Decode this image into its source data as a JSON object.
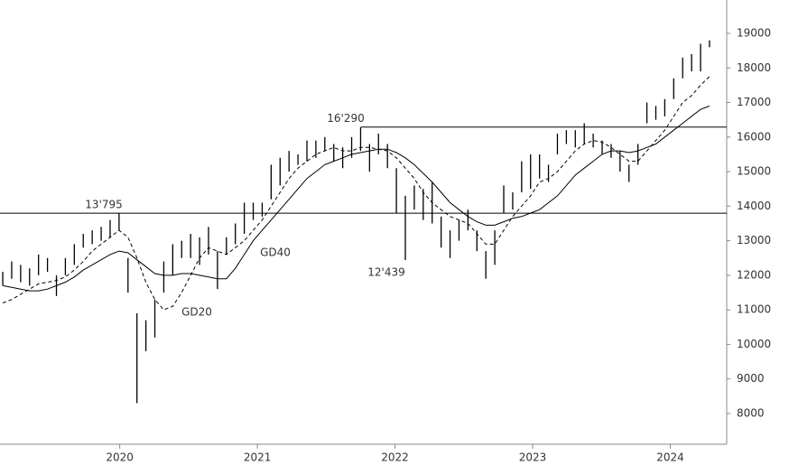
{
  "chart_data": {
    "type": "ohlc",
    "x": [
      2019.15,
      2019.215,
      2019.28,
      2019.345,
      2019.41,
      2019.475,
      2019.54,
      2019.605,
      2019.67,
      2019.735,
      2019.8,
      2019.865,
      2019.93,
      2019.995,
      2020.06,
      2020.125,
      2020.19,
      2020.255,
      2020.32,
      2020.385,
      2020.45,
      2020.515,
      2020.58,
      2020.645,
      2020.71,
      2020.775,
      2020.84,
      2020.905,
      2020.97,
      2021.035,
      2021.1,
      2021.165,
      2021.23,
      2021.295,
      2021.36,
      2021.425,
      2021.49,
      2021.555,
      2021.62,
      2021.685,
      2021.75,
      2021.815,
      2021.88,
      2021.945,
      2022.01,
      2022.075,
      2022.14,
      2022.205,
      2022.27,
      2022.335,
      2022.4,
      2022.465,
      2022.53,
      2022.595,
      2022.66,
      2022.725,
      2022.79,
      2022.855,
      2022.92,
      2022.985,
      2023.05,
      2023.115,
      2023.18,
      2023.245,
      2023.31,
      2023.375,
      2023.44,
      2023.505,
      2023.57,
      2023.635,
      2023.7,
      2023.765,
      2023.83,
      2023.895,
      2023.96,
      2024.025,
      2024.09,
      2024.155,
      2024.22,
      2024.285
    ],
    "low": [
      11700,
      11900,
      11800,
      11700,
      12000,
      12100,
      11400,
      12000,
      12300,
      12800,
      12900,
      13000,
      13100,
      13300,
      11500,
      8300,
      9800,
      10200,
      11500,
      12000,
      12500,
      12500,
      12300,
      12600,
      11600,
      12600,
      12900,
      13200,
      13600,
      13700,
      14200,
      14600,
      15000,
      15200,
      15300,
      15400,
      15600,
      15300,
      15100,
      15400,
      15600,
      15000,
      15500,
      15100,
      13800,
      12439,
      13900,
      13600,
      13500,
      12800,
      12500,
      13000,
      13300,
      12700,
      11900,
      12300,
      13800,
      13900,
      14400,
      14500,
      14800,
      14700,
      15500,
      15800,
      15700,
      15800,
      15700,
      15500,
      15400,
      15000,
      14700,
      15200,
      16400,
      16500,
      16600,
      17100,
      17700,
      17900,
      17900,
      18600
    ],
    "high": [
      12100,
      12400,
      12300,
      12200,
      12600,
      12500,
      12000,
      12500,
      12900,
      13200,
      13300,
      13400,
      13600,
      13795,
      12500,
      10900,
      10700,
      11300,
      12400,
      12900,
      13000,
      13200,
      13100,
      13400,
      12700,
      13100,
      13500,
      14100,
      14100,
      14100,
      15200,
      15400,
      15600,
      15500,
      15900,
      15900,
      16000,
      15800,
      15700,
      16000,
      16290,
      15800,
      16100,
      15800,
      15100,
      14300,
      14600,
      14500,
      14700,
      13700,
      13300,
      13600,
      13900,
      13300,
      12700,
      13300,
      14600,
      14400,
      15300,
      15500,
      15500,
      15200,
      16100,
      16200,
      16200,
      16400,
      16100,
      15900,
      15800,
      15600,
      15200,
      15800,
      17000,
      16900,
      17100,
      17700,
      18300,
      18400,
      18700,
      18800
    ],
    "series": [
      {
        "name": "GD20",
        "color": "#000000",
        "dashed": true,
        "values": [
          11200,
          11300,
          11450,
          11600,
          11750,
          11800,
          11850,
          11950,
          12150,
          12400,
          12700,
          12900,
          13100,
          13300,
          13100,
          12500,
          11800,
          11300,
          11000,
          11100,
          11500,
          12000,
          12500,
          12800,
          12700,
          12600,
          12800,
          13000,
          13300,
          13600,
          14000,
          14400,
          14800,
          15100,
          15300,
          15500,
          15600,
          15700,
          15600,
          15600,
          15700,
          15700,
          15650,
          15600,
          15400,
          15100,
          14800,
          14400,
          14100,
          13900,
          13700,
          13600,
          13500,
          13200,
          12900,
          12900,
          13300,
          13700,
          14000,
          14300,
          14700,
          14800,
          15000,
          15300,
          15600,
          15800,
          15900,
          15850,
          15700,
          15500,
          15300,
          15300,
          15600,
          15900,
          16200,
          16600,
          17000,
          17200,
          17500,
          17750
        ]
      },
      {
        "name": "GD40",
        "color": "#000000",
        "dashed": false,
        "values": [
          11700,
          11650,
          11600,
          11550,
          11550,
          11600,
          11700,
          11800,
          11950,
          12150,
          12300,
          12450,
          12600,
          12700,
          12650,
          12450,
          12250,
          12050,
          12000,
          12000,
          12050,
          12050,
          12000,
          11950,
          11900,
          11900,
          12200,
          12600,
          13000,
          13300,
          13600,
          13900,
          14200,
          14500,
          14800,
          15000,
          15200,
          15300,
          15400,
          15500,
          15550,
          15600,
          15650,
          15650,
          15550,
          15400,
          15200,
          14950,
          14700,
          14400,
          14100,
          13900,
          13700,
          13550,
          13450,
          13450,
          13550,
          13650,
          13700,
          13800,
          13900,
          14100,
          14300,
          14600,
          14900,
          15100,
          15300,
          15500,
          15600,
          15600,
          15550,
          15600,
          15700,
          15800,
          16000,
          16200,
          16400,
          16600,
          16800,
          16900
        ]
      }
    ],
    "annotations": [
      {
        "value": 13795,
        "label": "13'795",
        "line": true
      },
      {
        "value": 16290,
        "label": "16'290",
        "line": true
      },
      {
        "value": 12439,
        "label": "12'439",
        "line": false
      }
    ],
    "xlim": [
      2019.13,
      2024.41
    ],
    "xticks": [
      2020,
      2021,
      2022,
      2023,
      2024
    ],
    "ylim": [
      7110,
      19967
    ],
    "yticks": [
      8000,
      9000,
      10000,
      11000,
      12000,
      13000,
      14000,
      15000,
      16000,
      17000,
      18000,
      19000
    ],
    "y_axis_side": "right",
    "grid": false
  }
}
